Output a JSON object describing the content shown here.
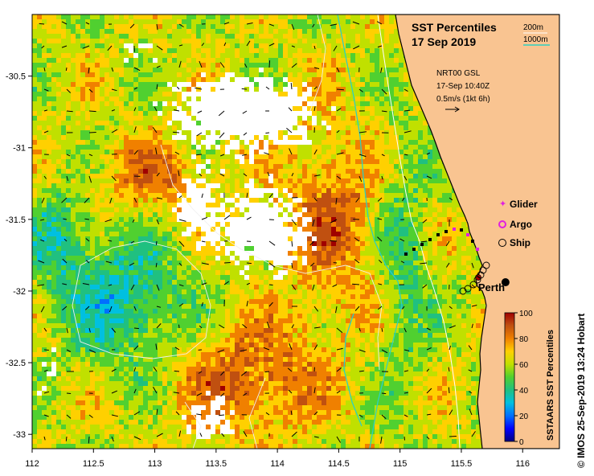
{
  "header": {
    "title": "SST Percentiles",
    "date": "17 Sep 2019"
  },
  "contour_legend": {
    "c200": "200m",
    "c1000": "1000m",
    "c200_color": "#ffffff",
    "c1000_color": "#2fd0c0"
  },
  "current_info": {
    "source": "NRT00 GSL",
    "time": "17-Sep 10:40Z",
    "scale": "0.5m/s (1kt 6h)"
  },
  "obs_legend": [
    {
      "label": "Glider",
      "color": "#e020e0"
    },
    {
      "label": "Argo",
      "color": "#e020e0"
    },
    {
      "label": "Ship",
      "color": "#000000"
    }
  ],
  "city": {
    "label": "Perth",
    "lon": 115.86,
    "lat": -31.95
  },
  "colorbar": {
    "title": "SSTAARS SST Percentiles",
    "ticks": [
      "0",
      "20",
      "40",
      "60",
      "80",
      "100"
    ]
  },
  "credit": "© IMOS 25-Sep-2019 13:24 Hobart",
  "axes": {
    "x_ticks": [
      "112",
      "112.5",
      "113",
      "113.5",
      "114",
      "114.5",
      "115",
      "115.5",
      "116"
    ],
    "y_ticks": [
      "-30.5",
      "-31",
      "-31.5",
      "-32",
      "-32.5",
      "-33"
    ],
    "lon_range": [
      112,
      116.3
    ],
    "lat_range": [
      -33.1,
      -30.07
    ]
  },
  "colors": {
    "land": "#f9c491",
    "coast": "#000000"
  }
}
